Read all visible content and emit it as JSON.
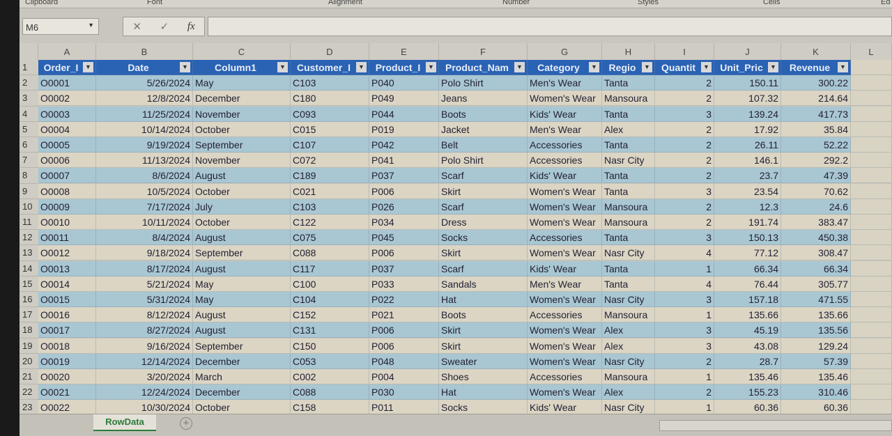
{
  "ribbon": {
    "groups": [
      "Clipboard",
      "Font",
      "Alignment",
      "Number",
      "Styles",
      "Cells",
      "Ed"
    ]
  },
  "formula_bar": {
    "name_box": "M6",
    "cancel_icon": "✕",
    "enter_icon": "✓",
    "fx_label": "fx",
    "value": ""
  },
  "columns": [
    "A",
    "B",
    "C",
    "D",
    "E",
    "F",
    "G",
    "H",
    "I",
    "J",
    "K",
    "L"
  ],
  "headers": [
    "Order_I",
    "Date",
    "Column1",
    "Customer_I",
    "Product_I",
    "Product_Nam",
    "Category",
    "Regio",
    "Quantit",
    "Unit_Pric",
    "Revenue"
  ],
  "rows": [
    [
      "O0001",
      "5/26/2024",
      "May",
      "C103",
      "P040",
      "Polo Shirt",
      "Men's Wear",
      "Tanta",
      "2",
      "150.11",
      "300.22"
    ],
    [
      "O0002",
      "12/8/2024",
      "December",
      "C180",
      "P049",
      "Jeans",
      "Women's Wear",
      "Mansoura",
      "2",
      "107.32",
      "214.64"
    ],
    [
      "O0003",
      "11/25/2024",
      "November",
      "C093",
      "P044",
      "Boots",
      "Kids' Wear",
      "Tanta",
      "3",
      "139.24",
      "417.73"
    ],
    [
      "O0004",
      "10/14/2024",
      "October",
      "C015",
      "P019",
      "Jacket",
      "Men's Wear",
      "Alex",
      "2",
      "17.92",
      "35.84"
    ],
    [
      "O0005",
      "9/19/2024",
      "September",
      "C107",
      "P042",
      "Belt",
      "Accessories",
      "Tanta",
      "2",
      "26.11",
      "52.22"
    ],
    [
      "O0006",
      "11/13/2024",
      "November",
      "C072",
      "P041",
      "Polo Shirt",
      "Accessories",
      "Nasr City",
      "2",
      "146.1",
      "292.2"
    ],
    [
      "O0007",
      "8/6/2024",
      "August",
      "C189",
      "P037",
      "Scarf",
      "Kids' Wear",
      "Tanta",
      "2",
      "23.7",
      "47.39"
    ],
    [
      "O0008",
      "10/5/2024",
      "October",
      "C021",
      "P006",
      "Skirt",
      "Women's Wear",
      "Tanta",
      "3",
      "23.54",
      "70.62"
    ],
    [
      "O0009",
      "7/17/2024",
      "July",
      "C103",
      "P026",
      "Scarf",
      "Women's Wear",
      "Mansoura",
      "2",
      "12.3",
      "24.6"
    ],
    [
      "O0010",
      "10/11/2024",
      "October",
      "C122",
      "P034",
      "Dress",
      "Women's Wear",
      "Mansoura",
      "2",
      "191.74",
      "383.47"
    ],
    [
      "O0011",
      "8/4/2024",
      "August",
      "C075",
      "P045",
      "Socks",
      "Accessories",
      "Tanta",
      "3",
      "150.13",
      "450.38"
    ],
    [
      "O0012",
      "9/18/2024",
      "September",
      "C088",
      "P006",
      "Skirt",
      "Women's Wear",
      "Nasr City",
      "4",
      "77.12",
      "308.47"
    ],
    [
      "O0013",
      "8/17/2024",
      "August",
      "C117",
      "P037",
      "Scarf",
      "Kids' Wear",
      "Tanta",
      "1",
      "66.34",
      "66.34"
    ],
    [
      "O0014",
      "5/21/2024",
      "May",
      "C100",
      "P033",
      "Sandals",
      "Men's Wear",
      "Tanta",
      "4",
      "76.44",
      "305.77"
    ],
    [
      "O0015",
      "5/31/2024",
      "May",
      "C104",
      "P022",
      "Hat",
      "Women's Wear",
      "Nasr City",
      "3",
      "157.18",
      "471.55"
    ],
    [
      "O0016",
      "8/12/2024",
      "August",
      "C152",
      "P021",
      "Boots",
      "Accessories",
      "Mansoura",
      "1",
      "135.66",
      "135.66"
    ],
    [
      "O0017",
      "8/27/2024",
      "August",
      "C131",
      "P006",
      "Skirt",
      "Women's Wear",
      "Alex",
      "3",
      "45.19",
      "135.56"
    ],
    [
      "O0018",
      "9/16/2024",
      "September",
      "C150",
      "P006",
      "Skirt",
      "Women's Wear",
      "Alex",
      "3",
      "43.08",
      "129.24"
    ],
    [
      "O0019",
      "12/14/2024",
      "December",
      "C053",
      "P048",
      "Sweater",
      "Women's Wear",
      "Nasr City",
      "2",
      "28.7",
      "57.39"
    ],
    [
      "O0020",
      "3/20/2024",
      "March",
      "C002",
      "P004",
      "Shoes",
      "Accessories",
      "Mansoura",
      "1",
      "135.46",
      "135.46"
    ],
    [
      "O0021",
      "12/24/2024",
      "December",
      "C088",
      "P030",
      "Hat",
      "Women's Wear",
      "Alex",
      "2",
      "155.23",
      "310.46"
    ],
    [
      "O0022",
      "10/30/2024",
      "October",
      "C158",
      "P011",
      "Socks",
      "Kids' Wear",
      "Nasr City",
      "1",
      "60.36",
      "60.36"
    ]
  ],
  "sheet_tabs": [
    {
      "label": "RowData",
      "active": true
    }
  ],
  "add_sheet_icon": "+",
  "colors": {
    "header": "#2a62b4",
    "band_blue": "#a9c6d3",
    "band_beige": "#dcd5c4",
    "active_tab": "#2b7a3a"
  }
}
